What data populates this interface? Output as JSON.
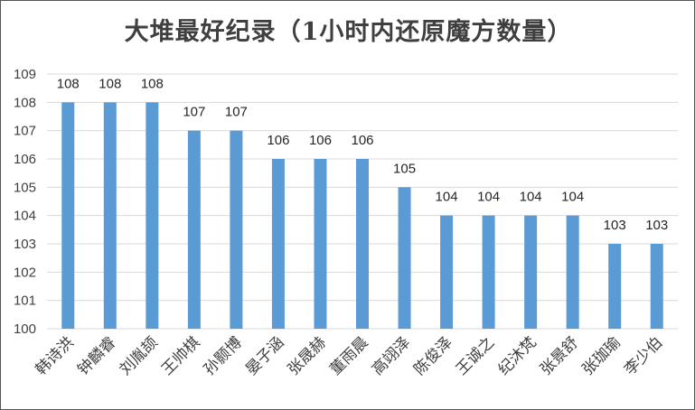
{
  "chart_data": {
    "type": "bar",
    "title": "大堆最好纪录（1小时内还原魔方数量）",
    "categories": [
      "韩诗洪",
      "钟麟睿",
      "刘胤颉",
      "王帅棋",
      "孙颢博",
      "晏子涵",
      "张晟赫",
      "董雨晨",
      "高翊泽",
      "陈俊泽",
      "王诚之",
      "纪沐梵",
      "张景舒",
      "张珈瑜",
      "李少伯"
    ],
    "values": [
      108,
      108,
      108,
      107,
      107,
      106,
      106,
      106,
      105,
      104,
      104,
      104,
      104,
      103,
      103
    ],
    "ylim": [
      100,
      109
    ],
    "yticks": [
      100,
      101,
      102,
      103,
      104,
      105,
      106,
      107,
      108,
      109
    ],
    "xlabel": "",
    "ylabel": "",
    "grid": true,
    "bar_color": "#5b9bd5",
    "grid_color": "#d9d9d9"
  }
}
